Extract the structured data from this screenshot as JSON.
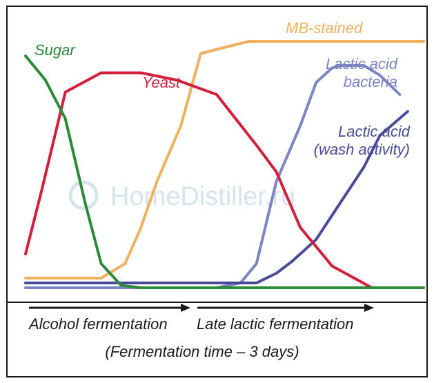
{
  "chart_data": {
    "type": "line",
    "xlabel": "",
    "ylabel": "",
    "grid": false,
    "series": [
      {
        "name": "Sugar",
        "color": "#2a8a3a",
        "x": [
          0,
          5,
          10,
          15,
          19,
          24,
          29,
          33,
          38,
          48,
          100
        ],
        "y": [
          96,
          86,
          70,
          35,
          10,
          1,
          0,
          0,
          0,
          0,
          0
        ]
      },
      {
        "name": "Yeast",
        "color": "#d41e3c",
        "x": [
          0,
          4,
          10,
          19,
          29,
          38,
          48,
          58,
          63,
          69,
          77,
          87,
          96
        ],
        "y": [
          14,
          40,
          81,
          89,
          89,
          86,
          80,
          59,
          48,
          25,
          9,
          0,
          0
        ]
      },
      {
        "name": "MB-stained",
        "color": "#f0b060",
        "x": [
          0,
          8,
          19,
          25,
          29,
          33,
          39,
          44,
          56,
          62,
          69,
          82,
          100
        ],
        "y": [
          4,
          4,
          4,
          10,
          25,
          44,
          67,
          97,
          102,
          102,
          102,
          102,
          102
        ]
      },
      {
        "name": "Lactic acid\nbacteria",
        "color": "#7b84c4",
        "x": [
          0,
          10,
          19,
          29,
          39,
          48,
          54,
          58,
          63,
          69,
          73,
          77,
          79,
          82,
          85,
          89,
          94
        ],
        "y": [
          0,
          0,
          0,
          0,
          0,
          0,
          2,
          10,
          44,
          67,
          85,
          91,
          92,
          92,
          92,
          88,
          80
        ]
      },
      {
        "name": "Lactic acid\n(wash activity)",
        "color": "#4a4a9a",
        "x": [
          0,
          10,
          19,
          29,
          39,
          48,
          58,
          63,
          67,
          73,
          79,
          85,
          89,
          96
        ],
        "y": [
          2,
          2,
          2,
          2,
          2,
          2,
          2,
          6,
          11,
          20,
          35,
          50,
          63,
          73
        ]
      }
    ],
    "watermark": "HomeDistiller.ru",
    "phases": [
      "Alcohol fermentation",
      "Late lactic fermentation"
    ],
    "caption": "(Fermentation time – 3 days)"
  }
}
